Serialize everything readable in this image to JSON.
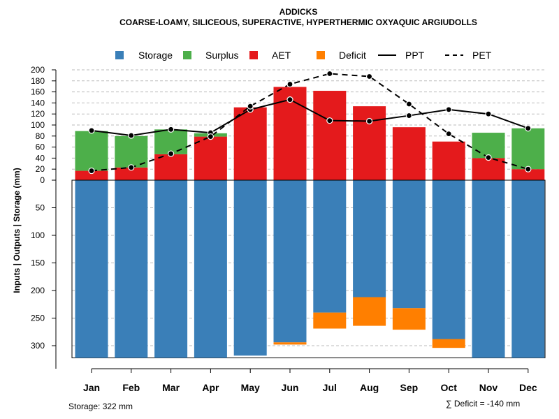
{
  "title_line1": "ADDICKS",
  "title_line2": "COARSE-LOAMY, SILICEOUS, SUPERACTIVE, HYPERTHERMIC OXYAQUIC ARGIUDOLLS",
  "legend": {
    "storage": "Storage",
    "surplus": "Surplus",
    "aet": "AET",
    "deficit": "Deficit",
    "ppt": "PPT",
    "pet": "PET"
  },
  "colors": {
    "storage": "#3a7fb8",
    "surplus": "#4daf4a",
    "aet": "#e41a1c",
    "deficit": "#ff7f00",
    "line": "#000000"
  },
  "ylabel": "Inputs | Outputs | Storage     (mm)",
  "footer_left": "Storage: 322 mm",
  "footer_right": "∑ Deficit = -140 mm",
  "chart_data": {
    "type": "bar",
    "title": "ADDICKS",
    "subtitle": "COARSE-LOAMY, SILICEOUS, SUPERACTIVE, HYPERTHERMIC OXYAQUIC ARGIUDOLLS",
    "categories": [
      "Jan",
      "Feb",
      "Mar",
      "Apr",
      "May",
      "Jun",
      "Jul",
      "Aug",
      "Sep",
      "Oct",
      "Nov",
      "Dec"
    ],
    "ylabel": "Inputs | Outputs | Storage (mm)",
    "upper_ylim": [
      0,
      200
    ],
    "upper_ticks": [
      "0",
      "20",
      "40",
      "60",
      "80",
      "100",
      "120",
      "140",
      "160",
      "180",
      "200"
    ],
    "lower_ylim": [
      0,
      322
    ],
    "lower_ticks": [
      "50",
      "100",
      "150",
      "200",
      "250",
      "300"
    ],
    "storage_capacity": 322,
    "series": [
      {
        "name": "AET",
        "values": [
          17,
          23,
          47,
          79,
          132,
          169,
          162,
          134,
          96,
          70,
          40,
          20
        ]
      },
      {
        "name": "Surplus",
        "values": [
          72,
          57,
          45,
          6,
          0,
          0,
          0,
          0,
          0,
          0,
          46,
          74
        ]
      },
      {
        "name": "Storage",
        "values": [
          322,
          322,
          322,
          322,
          318,
          294,
          240,
          212,
          232,
          288,
          322,
          322
        ]
      },
      {
        "name": "Deficit",
        "values": [
          0,
          0,
          0,
          0,
          0,
          4,
          29,
          52,
          39,
          16,
          0,
          0
        ]
      },
      {
        "name": "PPT",
        "values": [
          90,
          81,
          92,
          86,
          128,
          146,
          108,
          107,
          117,
          128,
          120,
          94
        ]
      },
      {
        "name": "PET",
        "values": [
          17,
          23,
          48,
          79,
          134,
          174,
          193,
          188,
          138,
          84,
          41,
          20
        ]
      }
    ]
  }
}
